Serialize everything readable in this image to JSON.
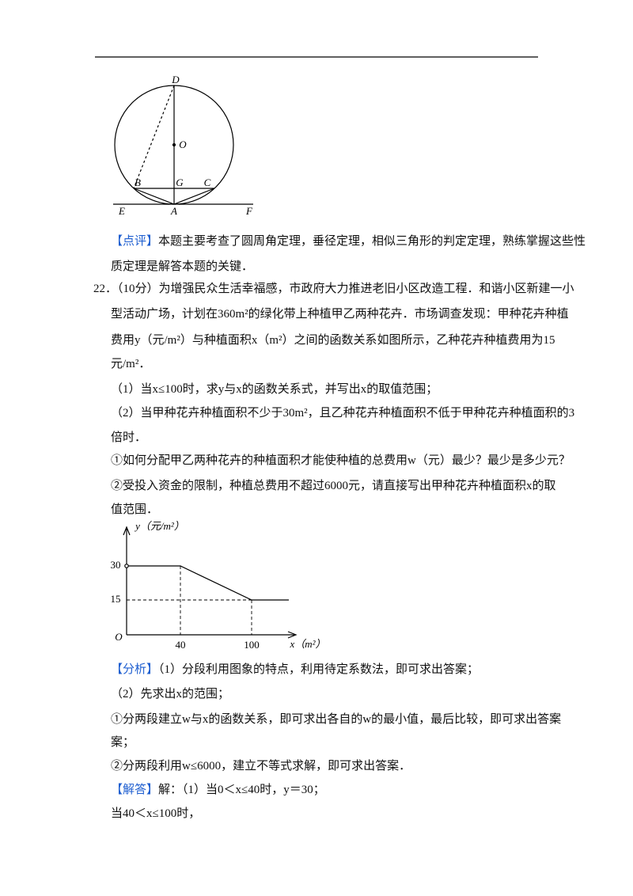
{
  "figure1": {
    "labels": [
      "D",
      "O",
      "B",
      "G",
      "C",
      "E",
      "A",
      "F"
    ]
  },
  "comment": {
    "tag": "【点评】",
    "lines": [
      "本题主要考查了圆周角定理，垂径定理，相似三角形的判定定理，熟练掌握这些性",
      "质定理是解答本题的关键．"
    ]
  },
  "problem": {
    "number": "22．",
    "score": "（10分）",
    "lines": [
      "为增强民众生活幸福感，市政府大力推进老旧小区改造工程．和谐小区新建一小",
      "型活动广场，计划在360m²的绿化带上种植甲乙两种花卉．市场调查发现：甲种花卉种植",
      "费用y（元/m²）与种植面积x（m²）之间的函数关系如图所示，乙种花卉种植费用为15",
      "元/m²．",
      "（1）当x≤100时，求y与x的函数关系式，并写出x的取值范围；",
      "（2）当甲种花卉种植面积不少于30m²，且乙种花卉种植面积不低于甲种花卉种植面积的3",
      "倍时．",
      "①如何分配甲乙两种花卉的种植面积才能使种植的总费用w（元）最少？最少是多少元？",
      "②受投入资金的限制，种植总费用不超过6000元，请直接写出甲种花卉种植面积x的取",
      "值范围．"
    ]
  },
  "graph": {
    "y_label": "y（元/m²）",
    "x_label": "x（m²）",
    "origin": "O",
    "y_ticks": [
      "30",
      "15"
    ],
    "x_ticks": [
      "40",
      "100"
    ]
  },
  "analysis": {
    "tag": "【分析】",
    "lines": [
      "（1）分段利用图象的特点，利用待定系数法，即可求出答案；",
      "（2）先求出x的范围；",
      "①分两段建立w与x的函数关系，即可求出各自的w的最小值，最后比较，即可求出答案",
      "案；",
      "②分两段利用w≤6000，建立不等式求解，即可求出答案．"
    ]
  },
  "answer": {
    "tag": "【解答】",
    "lines": [
      "解：（1）当0＜x≤40时，y＝30；",
      "当40＜x≤100时，"
    ]
  }
}
